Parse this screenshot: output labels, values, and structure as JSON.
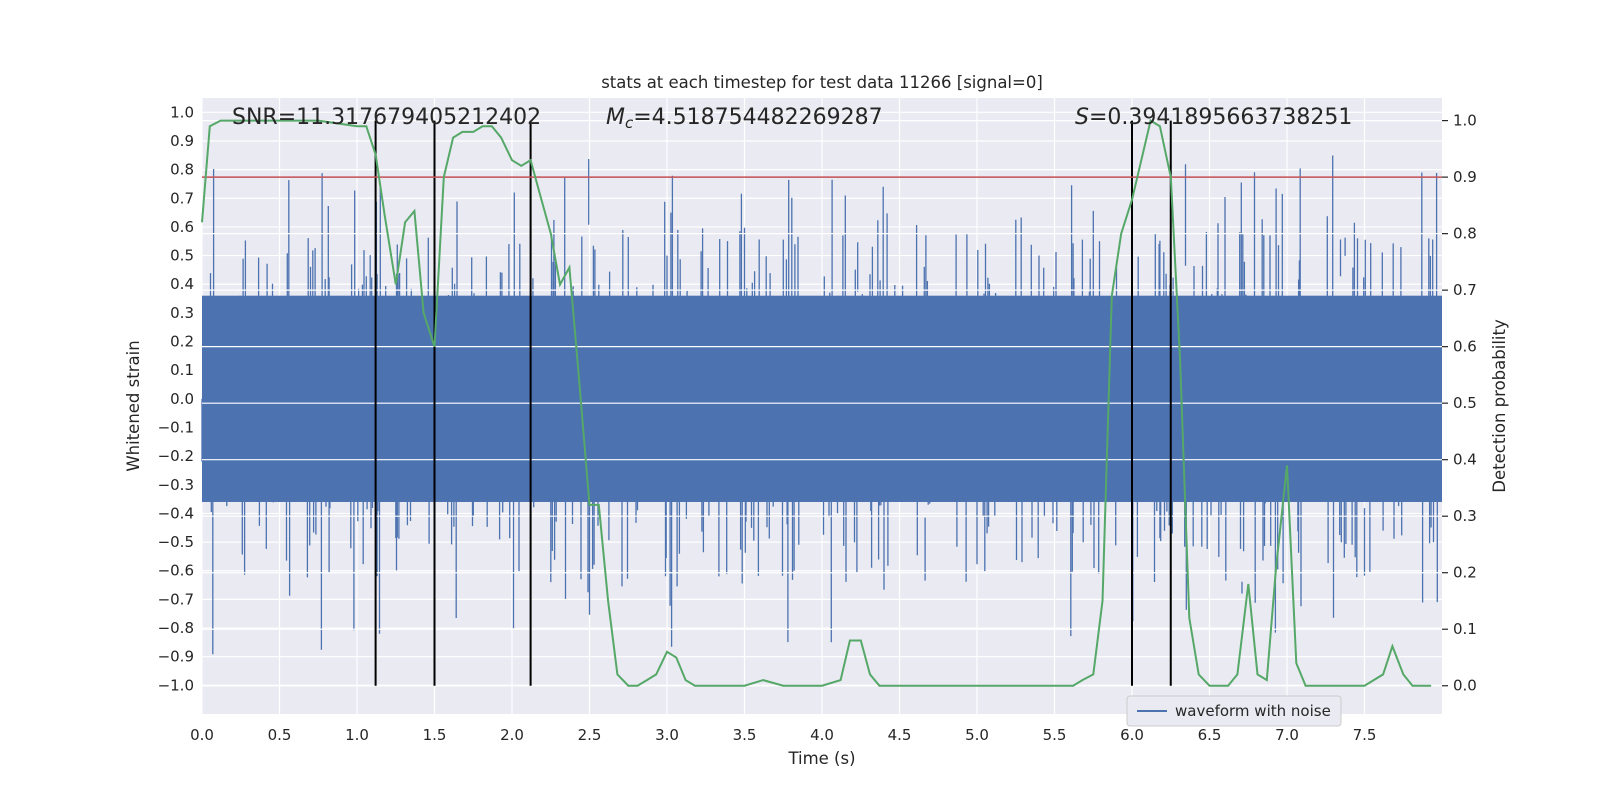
{
  "chart_data": {
    "type": "line",
    "title": "stats at each timestep for test data 11266 [signal=0]",
    "xlabel": "Time (s)",
    "ylabel_left": "Whitened strain",
    "ylabel_right": "Detection probability",
    "xlim": [
      0,
      8
    ],
    "ylim_left": [
      -1.1,
      1.05
    ],
    "ylim_right": [
      -0.05,
      1.04
    ],
    "x_ticks": [
      0.0,
      0.5,
      1.0,
      1.5,
      2.0,
      2.5,
      3.0,
      3.5,
      4.0,
      4.5,
      5.0,
      5.5,
      6.0,
      6.5,
      7.0,
      7.5
    ],
    "x_tick_labels": [
      "0.0",
      "0.5",
      "1.0",
      "1.5",
      "2.0",
      "2.5",
      "3.0",
      "3.5",
      "4.0",
      "4.5",
      "5.0",
      "5.5",
      "6.0",
      "6.5",
      "7.0",
      "7.5"
    ],
    "y_left_ticks": [
      1.0,
      0.9,
      0.8,
      0.7,
      0.6,
      0.5,
      0.4,
      0.3,
      0.2,
      0.1,
      0.0,
      -0.1,
      -0.2,
      -0.3,
      -0.4,
      -0.5,
      -0.6,
      -0.7,
      -0.8,
      -0.9,
      -1.0
    ],
    "y_left_tick_labels": [
      "1.0",
      "0.9",
      "0.8",
      "0.7",
      "0.6",
      "0.5",
      "0.4",
      "0.3",
      "0.2",
      "0.1",
      "0.0",
      "−0.1",
      "−0.2",
      "−0.3",
      "−0.4",
      "−0.5",
      "−0.6",
      "−0.7",
      "−0.8",
      "−0.9",
      "−1.0"
    ],
    "y_right_ticks": [
      1.0,
      0.9,
      0.8,
      0.7,
      0.6,
      0.5,
      0.4,
      0.3,
      0.2,
      0.1,
      0.0
    ],
    "y_right_tick_labels": [
      "1.0",
      "0.9",
      "0.8",
      "0.7",
      "0.6",
      "0.5",
      "0.4",
      "0.3",
      "0.2",
      "0.1",
      "0.0"
    ],
    "threshold": 0.9,
    "detection_markers_x": [
      1.12,
      1.5,
      2.12,
      6.0,
      6.25
    ],
    "annotations": {
      "snr": "SNR=11.317679405212402",
      "mc_symbol": "M",
      "mc_sub": "c",
      "mc_value": "=4.518754482269287",
      "s_symbol": "S",
      "s_value": "=0.3941895663738251"
    },
    "waveform": {
      "name": "waveform with noise",
      "n_samples": 1600,
      "core_amplitude": 0.36,
      "peak_max": 0.95,
      "peak_min": -1.0
    },
    "detection_probability": {
      "x": [
        0.0,
        0.05,
        0.12,
        0.25,
        0.5,
        0.75,
        1.0,
        1.06,
        1.12,
        1.18,
        1.25,
        1.31,
        1.37,
        1.43,
        1.5,
        1.56,
        1.62,
        1.68,
        1.75,
        1.81,
        1.87,
        1.93,
        2.0,
        2.06,
        2.12,
        2.18,
        2.25,
        2.31,
        2.37,
        2.43,
        2.5,
        2.56,
        2.62,
        2.68,
        2.75,
        2.81,
        2.87,
        2.93,
        3.0,
        3.06,
        3.12,
        3.18,
        3.25,
        3.5,
        3.62,
        3.75,
        4.0,
        4.12,
        4.18,
        4.25,
        4.31,
        4.37,
        4.5,
        4.75,
        5.0,
        5.25,
        5.5,
        5.62,
        5.68,
        5.75,
        5.81,
        5.87,
        5.93,
        6.0,
        6.06,
        6.12,
        6.18,
        6.25,
        6.31,
        6.37,
        6.43,
        6.5,
        6.56,
        6.62,
        6.68,
        6.75,
        6.81,
        6.87,
        6.93,
        7.0,
        7.06,
        7.12,
        7.18,
        7.25,
        7.31,
        7.37,
        7.5,
        7.62,
        7.68,
        7.75,
        7.81,
        7.87,
        7.93
      ],
      "y": [
        0.82,
        0.99,
        1.0,
        1.0,
        1.0,
        1.0,
        0.99,
        0.99,
        0.94,
        0.83,
        0.71,
        0.82,
        0.84,
        0.66,
        0.6,
        0.9,
        0.97,
        0.98,
        0.98,
        0.99,
        0.99,
        0.97,
        0.93,
        0.92,
        0.93,
        0.87,
        0.8,
        0.71,
        0.74,
        0.55,
        0.32,
        0.32,
        0.15,
        0.02,
        0.0,
        0.0,
        0.01,
        0.02,
        0.06,
        0.05,
        0.01,
        0.0,
        0.0,
        0.0,
        0.01,
        0.0,
        0.0,
        0.01,
        0.08,
        0.08,
        0.02,
        0.0,
        0.0,
        0.0,
        0.0,
        0.0,
        0.0,
        0.0,
        0.01,
        0.02,
        0.15,
        0.69,
        0.8,
        0.86,
        0.93,
        1.0,
        0.99,
        0.9,
        0.58,
        0.12,
        0.02,
        0.0,
        0.0,
        0.0,
        0.02,
        0.18,
        0.02,
        0.01,
        0.21,
        0.39,
        0.04,
        0.0,
        0.0,
        0.0,
        0.0,
        0.0,
        0.0,
        0.02,
        0.07,
        0.02,
        0.0,
        0.0,
        0.0
      ]
    },
    "grid": true,
    "legend_position": "lower-right"
  },
  "colors": {
    "axes_bg": "#eaeaf2",
    "waveform": "#4c72b0",
    "probability": "#55a868",
    "threshold": "#c44e52",
    "markers": "#000000",
    "grid": "#ffffff"
  }
}
